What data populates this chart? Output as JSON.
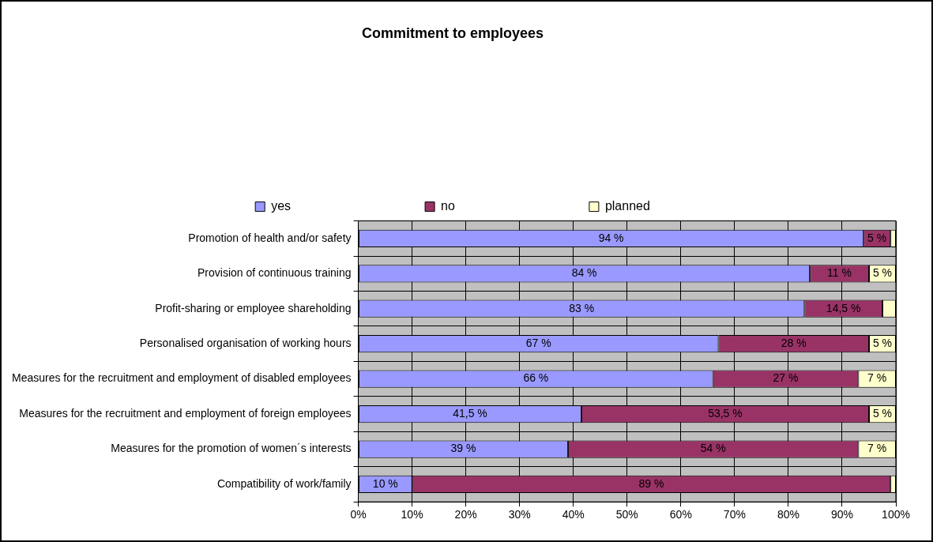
{
  "chart_data": {
    "type": "bar",
    "orientation": "horizontal",
    "stacked": true,
    "title": "Commitment to employees",
    "categories": [
      "Promotion of health and/or safety",
      "Provision of continuous training",
      "Profit-sharing or employee shareholding",
      "Personalised organisation of working hours",
      "Measures for the recruitment and employment of disabled employees",
      "Measures for the recruitment and employment of foreign employees",
      "Measures for the promotion of women´s interests",
      "Compatibility of work/family"
    ],
    "series": [
      {
        "name": "yes",
        "color": "#9999ff",
        "values": [
          94,
          84,
          83,
          67,
          66,
          41.5,
          39,
          10
        ],
        "value_labels": [
          "94 %",
          "84 %",
          "83 %",
          "67 %",
          "66 %",
          "41,5 %",
          "39 %",
          "10 %"
        ]
      },
      {
        "name": "no",
        "color": "#993366",
        "values": [
          5,
          11,
          14.5,
          28,
          27,
          53.5,
          54,
          89
        ],
        "value_labels": [
          "5 %",
          "11 %",
          "14,5 %",
          "28 %",
          "27 %",
          "53,5 %",
          "54 %",
          "89 %"
        ]
      },
      {
        "name": "planned",
        "color": "#ffffcc",
        "values": [
          1,
          5,
          2.5,
          5,
          7,
          5,
          7,
          1
        ],
        "value_labels": [
          null,
          "5 %",
          null,
          "5 %",
          "7 %",
          "5 %",
          "7 %",
          null
        ]
      }
    ],
    "xlim": [
      0,
      100
    ],
    "xticks": [
      {
        "value": 0,
        "label": "0%"
      },
      {
        "value": 10,
        "label": "10%"
      },
      {
        "value": 20,
        "label": "20%"
      },
      {
        "value": 30,
        "label": "30%"
      },
      {
        "value": 40,
        "label": "40%"
      },
      {
        "value": 50,
        "label": "50%"
      },
      {
        "value": 60,
        "label": "60%"
      },
      {
        "value": 70,
        "label": "70%"
      },
      {
        "value": 80,
        "label": "80%"
      },
      {
        "value": 90,
        "label": "90%"
      },
      {
        "value": 100,
        "label": "100%"
      }
    ],
    "grid": true,
    "legend": "top"
  }
}
